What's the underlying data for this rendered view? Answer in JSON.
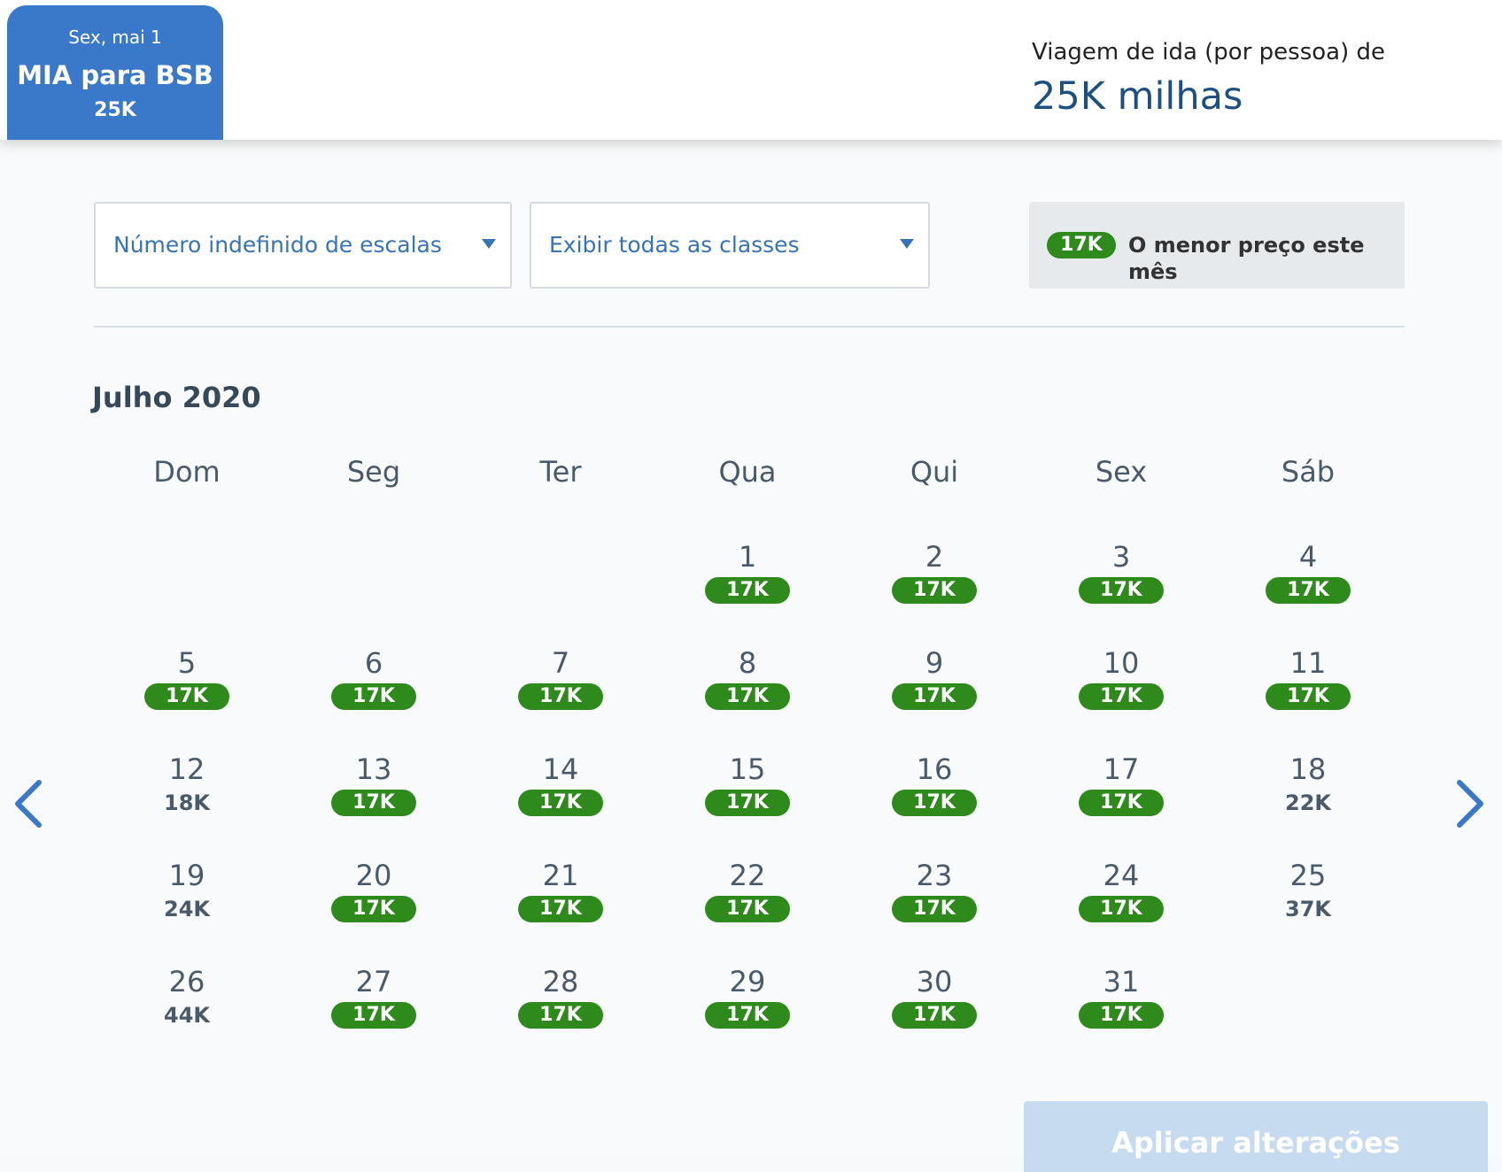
{
  "header": {
    "trip_tab": {
      "date": "Sex, mai 1",
      "route": "MIA para BSB",
      "price": "25K"
    },
    "fare_summary": {
      "label": "Viagem de ida (por pessoa) de",
      "amount": "25K milhas"
    }
  },
  "filters": {
    "stops": {
      "selected": "Número indefinido de escalas"
    },
    "classes": {
      "selected": "Exibir todas as classes"
    }
  },
  "legend": {
    "badge": "17K",
    "text": "O menor preço este mês"
  },
  "calendar": {
    "month_title": "Julho 2020",
    "weekdays": [
      "Dom",
      "Seg",
      "Ter",
      "Qua",
      "Qui",
      "Sex",
      "Sáb"
    ],
    "first_weekday_index": 3,
    "days": [
      {
        "day": "1",
        "price": "17K",
        "lowest": true
      },
      {
        "day": "2",
        "price": "17K",
        "lowest": true
      },
      {
        "day": "3",
        "price": "17K",
        "lowest": true
      },
      {
        "day": "4",
        "price": "17K",
        "lowest": true
      },
      {
        "day": "5",
        "price": "17K",
        "lowest": true
      },
      {
        "day": "6",
        "price": "17K",
        "lowest": true
      },
      {
        "day": "7",
        "price": "17K",
        "lowest": true
      },
      {
        "day": "8",
        "price": "17K",
        "lowest": true
      },
      {
        "day": "9",
        "price": "17K",
        "lowest": true
      },
      {
        "day": "10",
        "price": "17K",
        "lowest": true
      },
      {
        "day": "11",
        "price": "17K",
        "lowest": true
      },
      {
        "day": "12",
        "price": "18K",
        "lowest": false
      },
      {
        "day": "13",
        "price": "17K",
        "lowest": true
      },
      {
        "day": "14",
        "price": "17K",
        "lowest": true
      },
      {
        "day": "15",
        "price": "17K",
        "lowest": true
      },
      {
        "day": "16",
        "price": "17K",
        "lowest": true
      },
      {
        "day": "17",
        "price": "17K",
        "lowest": true
      },
      {
        "day": "18",
        "price": "22K",
        "lowest": false
      },
      {
        "day": "19",
        "price": "24K",
        "lowest": false
      },
      {
        "day": "20",
        "price": "17K",
        "lowest": true
      },
      {
        "day": "21",
        "price": "17K",
        "lowest": true
      },
      {
        "day": "22",
        "price": "17K",
        "lowest": true
      },
      {
        "day": "23",
        "price": "17K",
        "lowest": true
      },
      {
        "day": "24",
        "price": "17K",
        "lowest": true
      },
      {
        "day": "25",
        "price": "37K",
        "lowest": false
      },
      {
        "day": "26",
        "price": "44K",
        "lowest": false
      },
      {
        "day": "27",
        "price": "17K",
        "lowest": true
      },
      {
        "day": "28",
        "price": "17K",
        "lowest": true
      },
      {
        "day": "29",
        "price": "17K",
        "lowest": true
      },
      {
        "day": "30",
        "price": "17K",
        "lowest": true
      },
      {
        "day": "31",
        "price": "17K",
        "lowest": true
      }
    ]
  },
  "navigation": {
    "prev_icon": "chevron-left-icon",
    "next_icon": "chevron-right-icon"
  },
  "actions": {
    "apply_label": "Aplicar alterações"
  },
  "colors": {
    "brand_blue": "#3a78c9",
    "link_blue": "#3673b7",
    "lowest_price_green": "#2f8a1c",
    "apply_disabled": "#c6dbef"
  }
}
